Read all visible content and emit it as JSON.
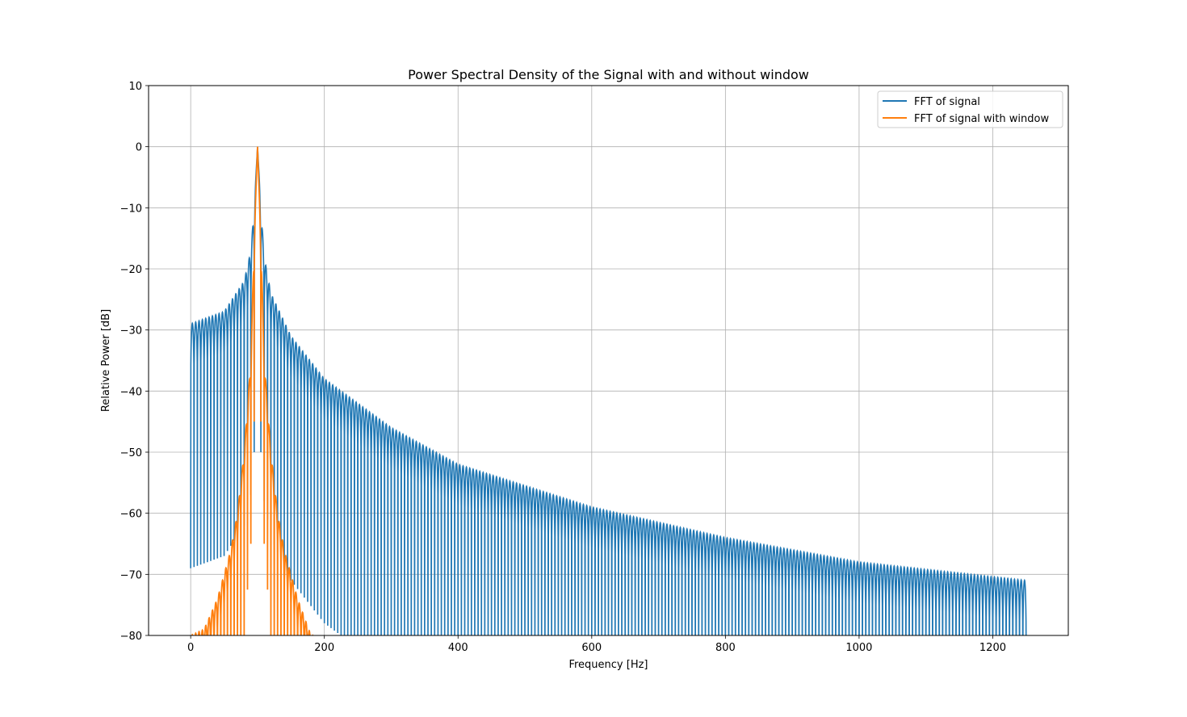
{
  "chart_data": {
    "type": "line",
    "title": "Power Spectral Density of the Signal with and without window",
    "xlabel": "Frequency [Hz]",
    "ylabel": "Relative Power [dB]",
    "xlim": [
      -63,
      1313
    ],
    "ylim": [
      -80,
      10
    ],
    "xticks": [
      0,
      200,
      400,
      600,
      800,
      1000,
      1200
    ],
    "xtick_labels": [
      "0",
      "200",
      "400",
      "600",
      "800",
      "1000",
      "1200"
    ],
    "yticks": [
      10,
      0,
      -10,
      -20,
      -30,
      -40,
      -50,
      -60,
      -70,
      -80
    ],
    "ytick_labels": [
      "10",
      "0",
      "−10",
      "−20",
      "−30",
      "−40",
      "−50",
      "−60",
      "−70",
      "−80"
    ],
    "grid": true,
    "legend_position": "upper right",
    "series": [
      {
        "name": "FFT of signal",
        "color": "#1f77b4",
        "description_points": {
          "x": [
            0,
            50,
            80,
            90,
            95,
            100,
            105,
            110,
            120,
            150,
            200,
            300,
            400,
            600,
            800,
            1000,
            1250
          ],
          "y": [
            -29,
            -27,
            -22,
            -17,
            -10,
            0,
            -10,
            -18,
            -24,
            -31,
            -38,
            -46,
            -52,
            -59,
            -64,
            -68,
            -71
          ]
        },
        "envelope_points": [
          [
            0,
            -29
          ],
          [
            50,
            -27
          ],
          [
            80,
            -22
          ],
          [
            90,
            -17
          ],
          [
            95,
            -10
          ],
          [
            100,
            0
          ],
          [
            105,
            -10
          ],
          [
            110,
            -18
          ],
          [
            120,
            -24
          ],
          [
            150,
            -31
          ],
          [
            200,
            -38
          ],
          [
            300,
            -46
          ],
          [
            400,
            -52
          ],
          [
            600,
            -59
          ],
          [
            800,
            -64
          ],
          [
            1000,
            -68
          ],
          [
            1250,
            -71
          ]
        ]
      },
      {
        "name": "FFT of signal with window",
        "color": "#ff7f0e",
        "envelope_points": [
          [
            0,
            -80
          ],
          [
            20,
            -79
          ],
          [
            40,
            -74
          ],
          [
            60,
            -66
          ],
          [
            70,
            -60
          ],
          [
            80,
            -50
          ],
          [
            90,
            -35
          ],
          [
            95,
            -15
          ],
          [
            100,
            0
          ],
          [
            105,
            -15
          ],
          [
            110,
            -35
          ],
          [
            120,
            -50
          ],
          [
            130,
            -60
          ],
          [
            140,
            -66
          ],
          [
            160,
            -74
          ],
          [
            180,
            -80
          ]
        ]
      }
    ]
  }
}
